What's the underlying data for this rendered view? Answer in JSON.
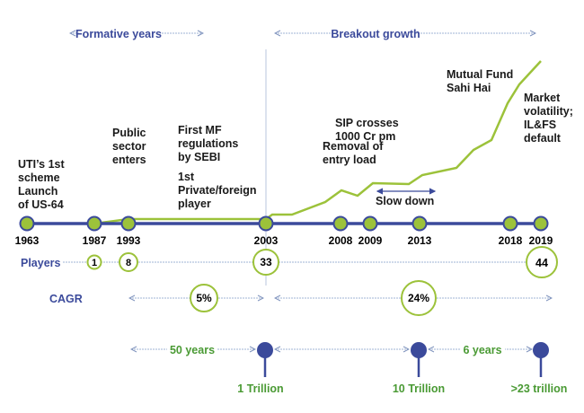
{
  "colors": {
    "navy": "#3b4a9b",
    "green": "#9cc23a",
    "dotted": "#9fb3d4",
    "green_text": "#4a9a34"
  },
  "phases": {
    "formative": "Formative years",
    "breakout": "Breakout growth"
  },
  "years": [
    "1963",
    "1987",
    "1993",
    "2003",
    "2008",
    "2009",
    "2013",
    "2018",
    "2019"
  ],
  "events": {
    "uti": [
      "UTI’s 1st",
      "scheme",
      "Launch",
      "of US-64"
    ],
    "public": [
      "Public",
      "sector",
      "enters"
    ],
    "sebi": [
      "First MF",
      "regulations",
      "by SEBI"
    ],
    "private": [
      "1st",
      "Private/foreign",
      "player"
    ],
    "entry_load": [
      "Removal of",
      "entry load"
    ],
    "slow_down": "Slow down",
    "sip": [
      "SIP crosses",
      "1000 Cr pm"
    ],
    "sahi_hai": [
      "Mutual Fund",
      "Sahi Hai"
    ],
    "volatility": [
      "Market",
      "volatility;",
      "IL&FS",
      "default"
    ]
  },
  "players": {
    "label": "Players",
    "values": [
      "1",
      "8",
      "33",
      "44"
    ]
  },
  "cagr": {
    "label": "CAGR",
    "values": [
      "5%",
      "24%"
    ]
  },
  "aum": {
    "durations": [
      "50 years",
      "6 years"
    ],
    "milestones": [
      "1 Trillion",
      "10 Trillion",
      ">23 trillion"
    ]
  }
}
